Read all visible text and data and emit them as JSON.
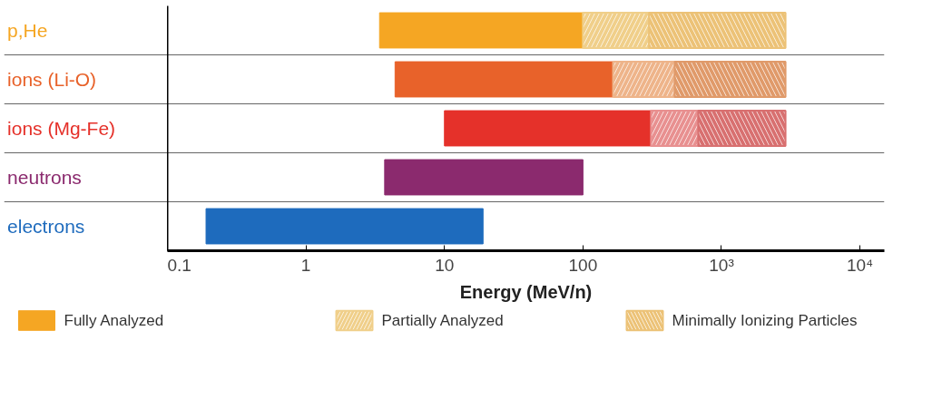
{
  "chart_data": {
    "type": "bar",
    "orientation": "horizontal",
    "stacked": true,
    "xlabel": "Energy (MeV/n)",
    "categories": [
      "p,He",
      "ions (Li-O)",
      "ions (Mg-Fe)",
      "neutrons",
      "electrons"
    ],
    "series": [
      {
        "name": "Fully Analyzed",
        "base": [
          3.4,
          4.4,
          10,
          3.7,
          0.19
        ],
        "colors": [
          "#f5a623",
          "#e8622a",
          "#e5312a",
          "#8b2a6e",
          "#1e6bbd"
        ],
        "values": [
          96.6,
          160.6,
          300,
          96.3,
          18.81
        ]
      },
      {
        "name": "Partially Analyzed",
        "colors": [
          "#f0cf8a",
          "#eeb48a",
          "#e89090",
          null,
          null
        ],
        "values": [
          200,
          295,
          370,
          null,
          null
        ]
      },
      {
        "name": "Minimally Ionizing Particles",
        "colors": [
          "#ecc277",
          "#e09a6a",
          "#d87070",
          null,
          null
        ],
        "values": [
          2600,
          2440,
          2220,
          null,
          null
        ]
      }
    ],
    "log": "x",
    "xlim": [
      0.1,
      15000
    ],
    "xticks": [
      0.1,
      1,
      10,
      100,
      {
        "value": 1000,
        "label": "10³"
      },
      {
        "value": 10000,
        "label": "10⁴"
      }
    ],
    "grid": "y",
    "legend": "bottom"
  }
}
